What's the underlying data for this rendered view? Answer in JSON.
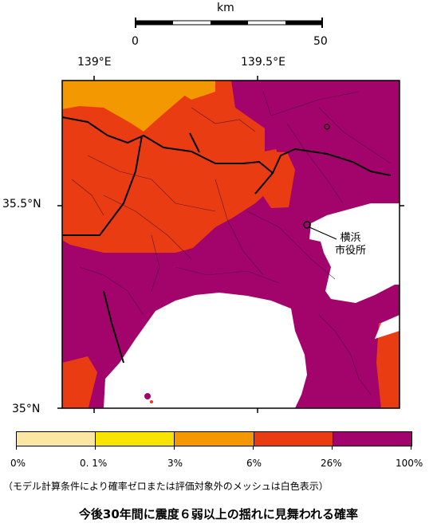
{
  "scale_bar": {
    "unit": "km",
    "min_label": "0",
    "max_label": "50"
  },
  "longitude_labels": [
    "139°E",
    "139.5°E"
  ],
  "latitude_labels": [
    "35.5°N",
    "35°N"
  ],
  "city_label": {
    "line1": "横浜",
    "line2": "市役所"
  },
  "legend": {
    "colors": [
      "#fbe7a1",
      "#f7e400",
      "#f39800",
      "#ea3c12",
      "#a3046c"
    ],
    "tick_labels": [
      "0%",
      "0. 1%",
      "3%",
      "6%",
      "26%",
      "100%"
    ]
  },
  "note": "（モデル計算条件により確率ゼロまたは評価対象外のメッシュは白色表示）",
  "title": "今後30年間に震度６弱以上の揺れに見舞われる確率"
}
